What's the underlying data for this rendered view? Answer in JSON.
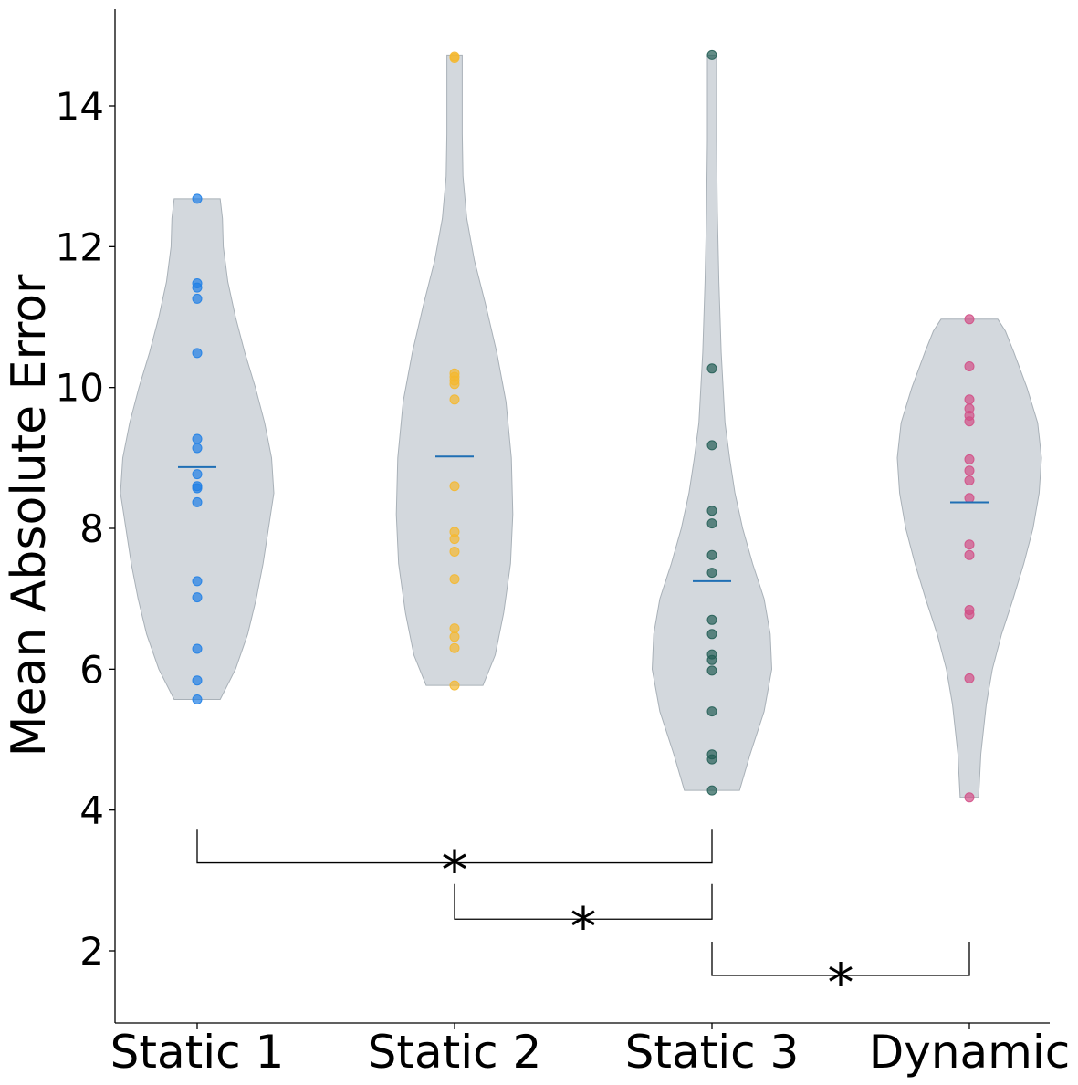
{
  "chart_data": {
    "type": "violin",
    "ylabel": "Mean Absolute Error",
    "xlabel": "",
    "ylim": [
      1.0,
      15.4
    ],
    "yticks": [
      2,
      4,
      6,
      8,
      10,
      12,
      14
    ],
    "categories": [
      "Static 1",
      "Static 2",
      "Static 3",
      "Dynamic"
    ],
    "grid": false,
    "series": [
      {
        "category": "Static 1",
        "color": "#1f7fe6",
        "mean": 8.87,
        "points": [
          12.68,
          11.48,
          11.42,
          11.26,
          10.49,
          9.27,
          9.14,
          8.77,
          8.6,
          8.57,
          8.37,
          7.25,
          7.02,
          6.29,
          5.84,
          5.57
        ],
        "violin": [
          [
            5.57,
            0.3
          ],
          [
            6.0,
            0.5
          ],
          [
            6.5,
            0.66
          ],
          [
            7.0,
            0.77
          ],
          [
            7.5,
            0.86
          ],
          [
            8.0,
            0.93
          ],
          [
            8.5,
            1.0
          ],
          [
            9.0,
            0.97
          ],
          [
            9.5,
            0.88
          ],
          [
            10.0,
            0.76
          ],
          [
            10.5,
            0.62
          ],
          [
            11.0,
            0.5
          ],
          [
            11.5,
            0.4
          ],
          [
            12.0,
            0.34
          ],
          [
            12.4,
            0.33
          ],
          [
            12.68,
            0.3
          ]
        ]
      },
      {
        "category": "Static 2",
        "color": "#f5b82e",
        "mean": 9.02,
        "points": [
          14.7,
          14.68,
          10.2,
          10.15,
          10.1,
          10.05,
          9.83,
          8.6,
          7.95,
          7.85,
          7.67,
          7.28,
          6.58,
          6.46,
          6.3,
          5.77
        ],
        "violin": [
          [
            5.77,
            0.37
          ],
          [
            6.2,
            0.53
          ],
          [
            6.8,
            0.64
          ],
          [
            7.5,
            0.73
          ],
          [
            8.2,
            0.76
          ],
          [
            9.0,
            0.74
          ],
          [
            9.8,
            0.67
          ],
          [
            10.5,
            0.55
          ],
          [
            11.2,
            0.4
          ],
          [
            11.8,
            0.26
          ],
          [
            12.4,
            0.16
          ],
          [
            13.0,
            0.11
          ],
          [
            13.6,
            0.1
          ],
          [
            14.2,
            0.1
          ],
          [
            14.72,
            0.1
          ]
        ]
      },
      {
        "category": "Static 3",
        "color": "#245e55",
        "mean": 7.25,
        "points": [
          14.72,
          10.27,
          9.18,
          8.25,
          8.07,
          7.62,
          7.37,
          6.7,
          6.5,
          6.21,
          6.13,
          5.98,
          5.4,
          4.79,
          4.72,
          4.28
        ],
        "violin": [
          [
            4.28,
            0.36
          ],
          [
            4.8,
            0.5
          ],
          [
            5.4,
            0.68
          ],
          [
            6.0,
            0.78
          ],
          [
            6.5,
            0.76
          ],
          [
            7.0,
            0.68
          ],
          [
            7.5,
            0.53
          ],
          [
            8.0,
            0.4
          ],
          [
            8.5,
            0.3
          ],
          [
            9.0,
            0.23
          ],
          [
            9.5,
            0.17
          ],
          [
            10.5,
            0.12
          ],
          [
            11.5,
            0.09
          ],
          [
            12.5,
            0.07
          ],
          [
            13.5,
            0.06
          ],
          [
            14.72,
            0.06
          ]
        ]
      },
      {
        "category": "Dynamic",
        "color": "#d24f86",
        "mean": 8.37,
        "points": [
          10.97,
          10.3,
          9.83,
          9.7,
          9.6,
          9.52,
          8.98,
          8.82,
          8.68,
          8.43,
          7.77,
          7.62,
          6.84,
          6.78,
          5.87,
          4.18
        ],
        "violin": [
          [
            4.18,
            0.12
          ],
          [
            4.8,
            0.15
          ],
          [
            5.5,
            0.22
          ],
          [
            6.0,
            0.3
          ],
          [
            6.5,
            0.42
          ],
          [
            7.0,
            0.57
          ],
          [
            7.5,
            0.71
          ],
          [
            8.0,
            0.83
          ],
          [
            8.5,
            0.91
          ],
          [
            9.0,
            0.94
          ],
          [
            9.5,
            0.89
          ],
          [
            10.0,
            0.75
          ],
          [
            10.5,
            0.58
          ],
          [
            10.8,
            0.47
          ],
          [
            10.97,
            0.37
          ]
        ]
      }
    ],
    "significance": [
      {
        "from": "Static 1",
        "to": "Static 3",
        "label": "*",
        "y": 3.25,
        "leg_top": 3.72
      },
      {
        "from": "Static 2",
        "to": "Static 3",
        "label": "*",
        "y": 2.45,
        "leg_top": 2.95
      },
      {
        "from": "Static 3",
        "to": "Dynamic",
        "label": "*",
        "y": 1.65,
        "leg_top": 2.13
      }
    ],
    "violin_fill": "#c4cbd1",
    "mean_line_color": "#1f6fb4"
  }
}
